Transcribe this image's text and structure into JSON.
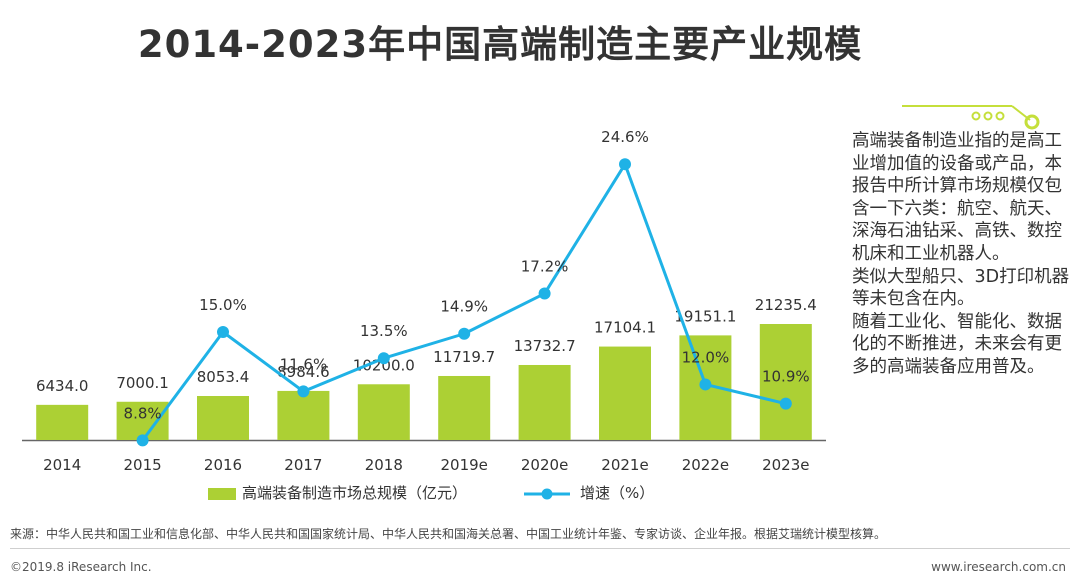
{
  "title": "2014-2023年中国高端制造主要产业规模",
  "colors": {
    "bar": "#acd034",
    "line": "#1fb2e6",
    "axis": "#666666",
    "accent": "#c5df3b"
  },
  "chart_data": {
    "type": "bar+line",
    "categories": [
      "2014",
      "2015",
      "2016",
      "2017",
      "2018",
      "2019e",
      "2020e",
      "2021e",
      "2022e",
      "2023e"
    ],
    "series": [
      {
        "name": "高端装备制造市场总规模（亿元）",
        "type": "bar",
        "values": [
          6434.0,
          7000.1,
          8053.4,
          8984.6,
          10200.0,
          11719.7,
          13732.7,
          17104.1,
          19151.1,
          21235.4
        ],
        "labels": [
          "6434.0",
          "7000.1",
          "8053.4",
          "8984.6",
          "10200.0",
          "11719.7",
          "13732.7",
          "17104.1",
          "19151.1",
          "21235.4"
        ]
      },
      {
        "name": "增速（%）",
        "type": "line",
        "values": [
          null,
          8.8,
          15.0,
          11.6,
          13.5,
          14.9,
          17.2,
          24.6,
          12.0,
          10.9
        ],
        "labels": [
          "",
          "8.8%",
          "15.0%",
          "11.6%",
          "13.5%",
          "14.9%",
          "17.2%",
          "24.6%",
          "12.0%",
          "10.9%"
        ]
      }
    ],
    "legend_position": "bottom",
    "grid": false
  },
  "legend": {
    "bar_label": "高端装备制造市场总规模（亿元）",
    "line_label": "增速（%）"
  },
  "note": {
    "paragraphs": [
      "高端装备制造业指的是高工业增加值的设备或产品，本报告中所计算市场规模仅包含一下六类：航空、航天、深海石油钻采、高铁、数控机床和工业机器人。",
      "类似大型船只、3D打印机器等未包含在内。",
      "随着工业化、智能化、数据化的不断推进，未来会有更多的高端装备应用普及。"
    ]
  },
  "source": "来源：中华人民共和国工业和信息化部、中华人民共和国国家统计局、中华人民共和国海关总署、中国工业统计年鉴、专家访谈、企业年报。根据艾瑞统计模型核算。",
  "copyright": "©2019.8 iResearch Inc.",
  "website": "www.iresearch.com.cn"
}
